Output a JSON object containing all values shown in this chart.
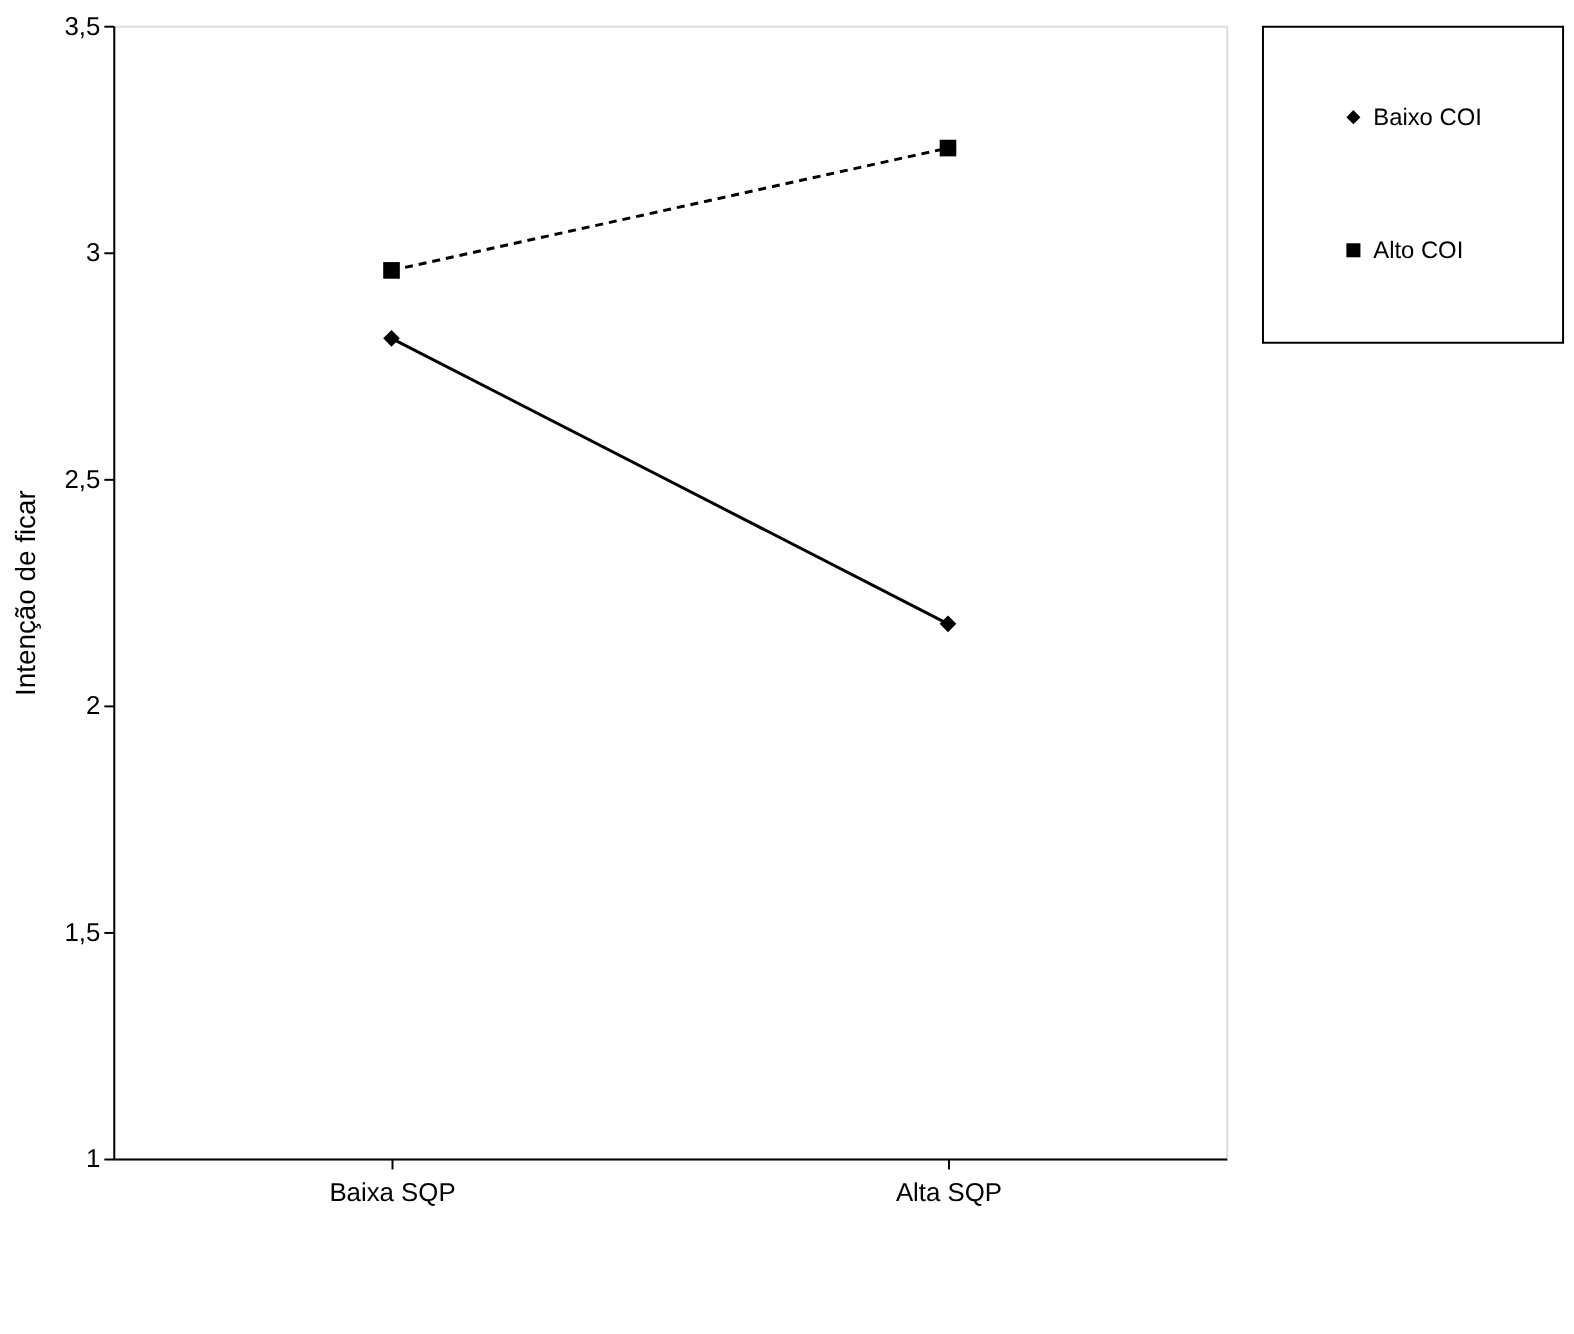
{
  "chart_data": {
    "type": "line",
    "ylabel": "Intenção de ficar",
    "categories": [
      "Baixa SQP",
      "Alta SQP"
    ],
    "series": [
      {
        "name": "Baixo COI",
        "color": "#000000",
        "values": [
          2.81,
          2.18
        ],
        "marker": "diamond",
        "line_style": "solid"
      },
      {
        "name": "Alto COI",
        "color": "#000000",
        "values": [
          2.96,
          3.23
        ],
        "marker": "square",
        "line_style": "dashed"
      }
    ],
    "ylim": [
      1,
      3.5
    ],
    "yticks": [
      1,
      {
        "value": 1.5,
        "label": "1,5"
      },
      2,
      {
        "value": 2.5,
        "label": "2,5"
      },
      3,
      {
        "value": 3.5,
        "label": "3,5"
      }
    ],
    "grid": false,
    "legend": "right"
  }
}
